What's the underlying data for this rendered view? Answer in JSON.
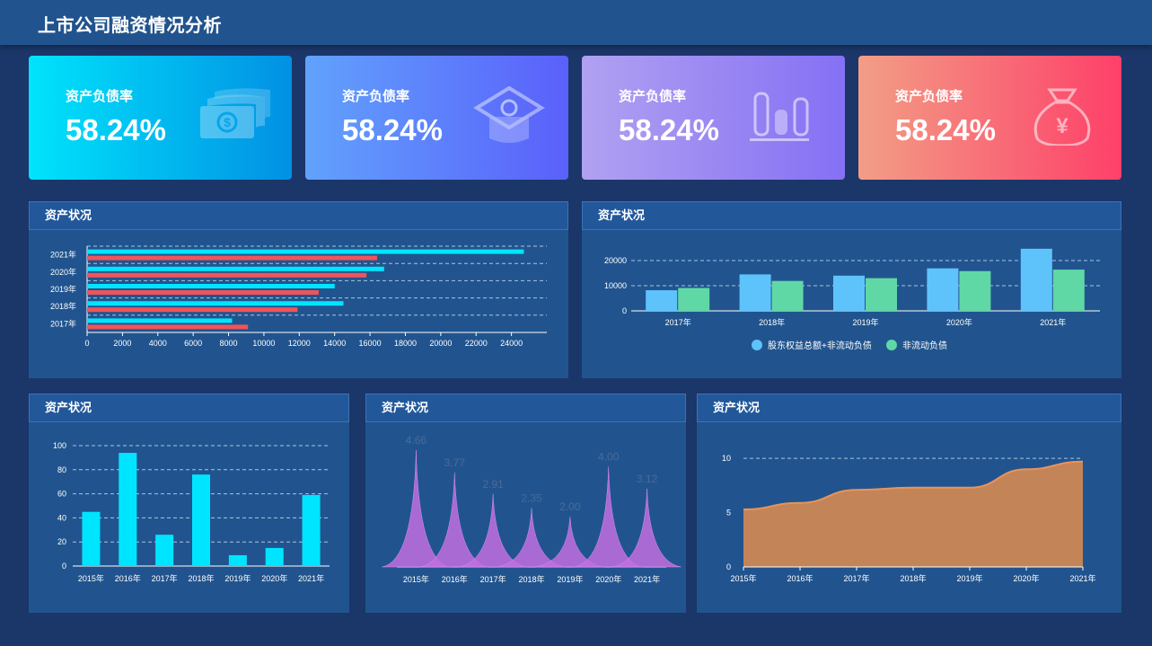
{
  "header": {
    "title": "上市公司融资情况分析"
  },
  "kpis": [
    {
      "label": "资产负债率",
      "value": "58.24%",
      "icon": "money-icon"
    },
    {
      "label": "资产负债率",
      "value": "58.24%",
      "icon": "graduation-cap-icon"
    },
    {
      "label": "资产负债率",
      "value": "58.24%",
      "icon": "bar-chart-icon"
    },
    {
      "label": "资产负债率",
      "value": "58.24%",
      "icon": "money-bag-icon"
    }
  ],
  "panels": {
    "p1": {
      "title": "资产状况"
    },
    "p2": {
      "title": "资产状况"
    },
    "p3": {
      "title": "资产状况"
    },
    "p4": {
      "title": "资产状况"
    },
    "p5": {
      "title": "资产状况"
    }
  },
  "colors": {
    "cyan": "#00e5ff",
    "red": "#f0545a",
    "blue_bar": "#5ec3fb",
    "green_bar": "#5fd8a6",
    "purple": "#c16fe0",
    "orange": "#c38458",
    "grid": "#a9c4e4"
  },
  "chart_data": [
    {
      "type": "bar",
      "orientation": "horizontal",
      "categories": [
        "2017年",
        "2018年",
        "2019年",
        "2020年",
        "2021年"
      ],
      "series": [
        {
          "color": "#00e5ff",
          "values": [
            8200,
            14500,
            14000,
            16800,
            24700
          ]
        },
        {
          "color": "#f0545a",
          "values": [
            9100,
            11900,
            13100,
            15800,
            16400
          ]
        }
      ],
      "xlim": [
        0,
        26000
      ],
      "xticks": [
        0,
        2000,
        4000,
        6000,
        8000,
        10000,
        12000,
        14000,
        16000,
        18000,
        20000,
        22000,
        24000
      ],
      "grid": true
    },
    {
      "type": "bar",
      "categories": [
        "2017年",
        "2018年",
        "2019年",
        "2020年",
        "2021年"
      ],
      "series": [
        {
          "name": "股东权益总额+非流动负债",
          "color": "#5ec3fb",
          "values": [
            8200,
            14500,
            14000,
            16900,
            24700
          ]
        },
        {
          "name": "非流动负债",
          "color": "#5fd8a6",
          "values": [
            9100,
            11900,
            13000,
            15800,
            16400
          ]
        }
      ],
      "ylim": [
        0,
        25000
      ],
      "yticks": [
        0,
        10000,
        20000
      ],
      "legend": "bottom-center",
      "grid": true
    },
    {
      "type": "bar",
      "categories": [
        "2015年",
        "2016年",
        "2017年",
        "2018年",
        "2019年",
        "2020年",
        "2021年"
      ],
      "values": [
        45,
        94,
        26,
        76,
        9,
        15,
        59
      ],
      "ylim": [
        0,
        100
      ],
      "yticks": [
        0,
        20,
        40,
        60,
        80,
        100
      ],
      "grid": true
    },
    {
      "type": "area",
      "shape": "pictorial-spike",
      "categories": [
        "2015年",
        "2016年",
        "2017年",
        "2018年",
        "2019年",
        "2020年",
        "2021年"
      ],
      "values": [
        4.66,
        3.77,
        2.91,
        2.35,
        2.0,
        4.0,
        3.12
      ],
      "labels": [
        "4.66",
        "3.77",
        "2.91",
        "2.35",
        "2.00",
        "4.00",
        "3.12"
      ]
    },
    {
      "type": "area",
      "categories": [
        "2015年",
        "2016年",
        "2017年",
        "2018年",
        "2019年",
        "2020年",
        "2021年"
      ],
      "values": [
        5.3,
        5.9,
        7.1,
        7.3,
        7.3,
        9.0,
        9.7
      ],
      "ylim": [
        0,
        12
      ],
      "yticks": [
        0,
        5,
        10
      ],
      "grid": true
    }
  ]
}
